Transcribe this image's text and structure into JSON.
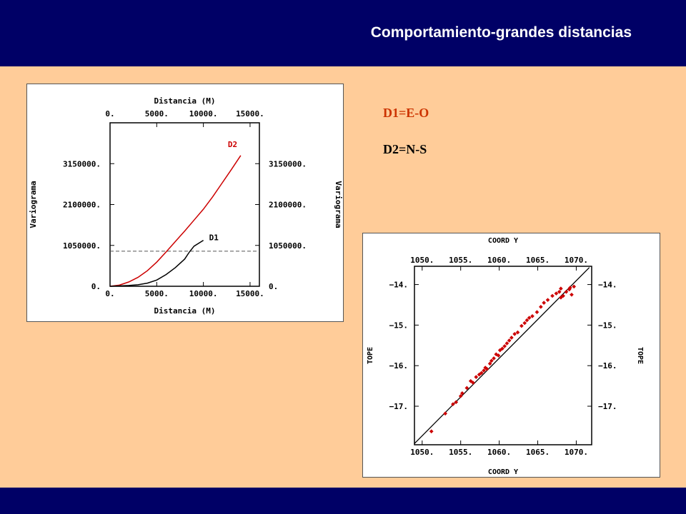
{
  "slide": {
    "title": "Comportamiento-grandes distancias",
    "legend": [
      {
        "text": "D1=E-O",
        "color": "#CC3300"
      },
      {
        "text": "D2=N-S",
        "color": "#000000"
      }
    ],
    "colors": {
      "background": "#FFCC99",
      "band": "#000066",
      "title": "#FFFFFF"
    }
  },
  "chart_data": [
    {
      "type": "line",
      "xlabel": "Distancia (M)",
      "ylabel": "Variograma",
      "xlim": [
        0,
        16000
      ],
      "ylim": [
        0,
        4200000
      ],
      "x_ticks": [
        0,
        5000,
        10000,
        15000
      ],
      "x_tick_labels": [
        "0.",
        "5000.",
        "10000.",
        "15000."
      ],
      "y_ticks": [
        0,
        1050000,
        2100000,
        3150000
      ],
      "y_tick_labels": [
        "0.",
        "1050000.",
        "2100000.",
        "3150000."
      ],
      "series": [
        {
          "name": "D2",
          "color": "#CC0000",
          "x": [
            0,
            1000,
            2000,
            3000,
            4000,
            5000,
            6000,
            7000,
            8000,
            9000,
            10000,
            11000,
            12000,
            13000,
            14000
          ],
          "y": [
            0,
            30000,
            110000,
            230000,
            400000,
            620000,
            880000,
            1150000,
            1420000,
            1700000,
            1980000,
            2300000,
            2650000,
            3000000,
            3360000
          ]
        },
        {
          "name": "D1",
          "color": "#000000",
          "x": [
            0,
            1000,
            2000,
            3000,
            4000,
            5000,
            6000,
            7000,
            8000,
            8500,
            9000,
            10000
          ],
          "y": [
            0,
            10000,
            20000,
            40000,
            80000,
            160000,
            300000,
            480000,
            700000,
            880000,
            1030000,
            1180000
          ]
        }
      ],
      "reference_line": {
        "y": 900000,
        "style": "dashed",
        "color": "#555555"
      },
      "grid": false
    },
    {
      "type": "scatter",
      "xlabel": "COORD Y",
      "ylabel": "TOPE",
      "xlim": [
        1049,
        1072
      ],
      "ylim": [
        -17.95,
        -13.55
      ],
      "x_ticks": [
        1050,
        1055,
        1060,
        1065,
        1070
      ],
      "x_tick_labels": [
        "1050.",
        "1055.",
        "1060.",
        "1065.",
        "1070."
      ],
      "y_ticks": [
        -14,
        -15,
        -16,
        -17
      ],
      "y_tick_labels": [
        "−14.",
        "−15.",
        "−16.",
        "−17."
      ],
      "series": [
        {
          "color": "#CC0000",
          "x": [
            1051.2,
            1053.0,
            1054.0,
            1054.4,
            1055.0,
            1055.2,
            1055.8,
            1056.3,
            1056.6,
            1057.0,
            1057.4,
            1057.7,
            1058.0,
            1058.2,
            1058.4,
            1058.8,
            1059.0,
            1059.3,
            1059.6,
            1059.9,
            1060.1,
            1060.4,
            1060.7,
            1061.0,
            1061.3,
            1061.6,
            1062.0,
            1062.4,
            1062.9,
            1063.3,
            1063.6,
            1063.9,
            1064.3,
            1064.9,
            1065.4,
            1065.8,
            1066.3,
            1066.9,
            1067.4,
            1067.8,
            1068.0,
            1068.3,
            1068.7,
            1069.1,
            1069.4,
            1069.7,
            1068.0,
            1069.2
          ],
          "y": [
            -17.62,
            -17.18,
            -16.95,
            -16.9,
            -16.75,
            -16.68,
            -16.55,
            -16.38,
            -16.42,
            -16.28,
            -16.22,
            -16.18,
            -16.12,
            -16.05,
            -16.08,
            -15.95,
            -15.88,
            -15.82,
            -15.72,
            -15.75,
            -15.62,
            -15.58,
            -15.52,
            -15.45,
            -15.38,
            -15.31,
            -15.22,
            -15.18,
            -15.02,
            -14.95,
            -14.88,
            -14.82,
            -14.78,
            -14.68,
            -14.55,
            -14.45,
            -14.38,
            -14.28,
            -14.22,
            -14.18,
            -14.1,
            -14.28,
            -14.18,
            -14.12,
            -14.25,
            -14.05,
            -14.32,
            -14.08
          ]
        }
      ],
      "fit_line": {
        "x": [
          1049,
          1071.7
        ],
        "y": [
          -17.92,
          -13.58
        ],
        "color": "#000000"
      },
      "grid": false
    }
  ]
}
